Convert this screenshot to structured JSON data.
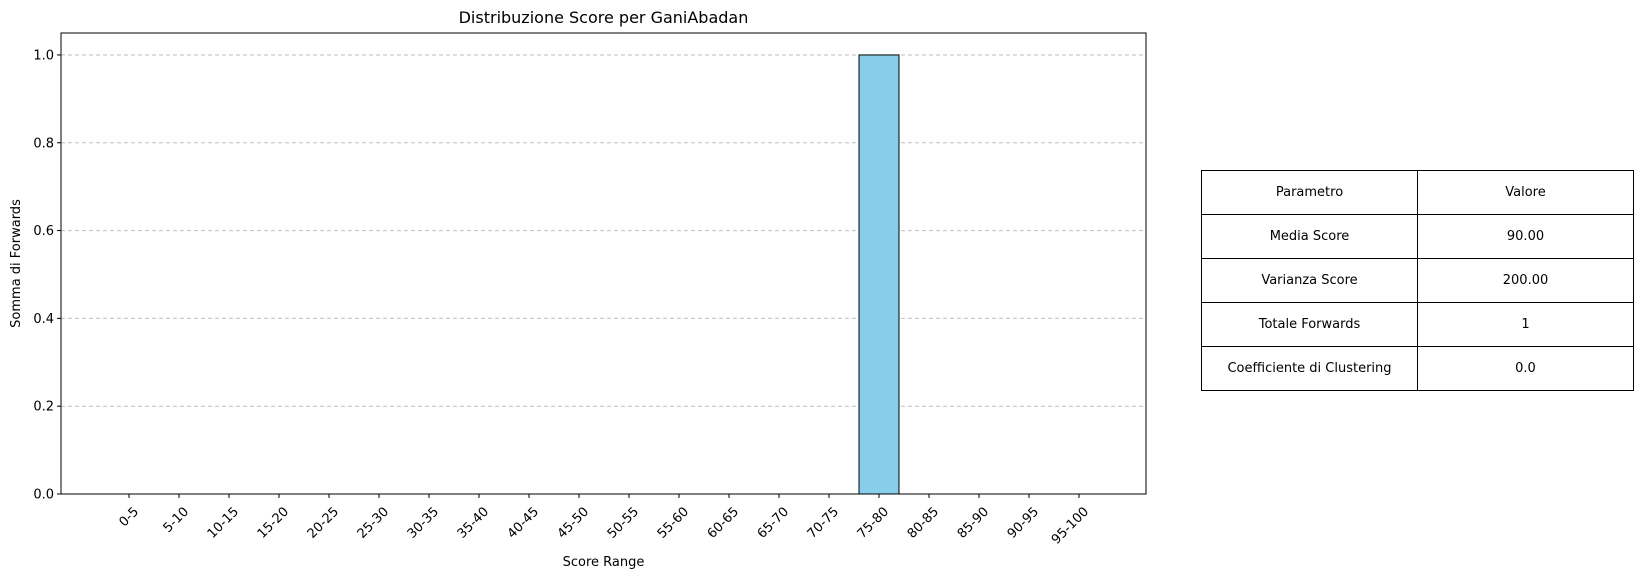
{
  "chart_data": {
    "type": "bar",
    "title": "Distribuzione Score per GaniAbadan",
    "xlabel": "Score Range",
    "ylabel": "Somma di Forwards",
    "categories": [
      "0-5",
      "5-10",
      "10-15",
      "15-20",
      "20-25",
      "25-30",
      "30-35",
      "35-40",
      "40-45",
      "45-50",
      "50-55",
      "55-60",
      "60-65",
      "65-70",
      "70-75",
      "75-80",
      "80-85",
      "85-90",
      "90-95",
      "95-100"
    ],
    "values": [
      0,
      0,
      0,
      0,
      0,
      0,
      0,
      0,
      0,
      0,
      0,
      0,
      0,
      0,
      0,
      1,
      0,
      0,
      0,
      0
    ],
    "ylim": [
      0,
      1.05
    ],
    "yticks": [
      "0.0",
      "0.2",
      "0.4",
      "0.6",
      "0.8",
      "1.0"
    ],
    "grid": "y-dashed",
    "bar_color": "#87ceeb",
    "edge_color": "#000000"
  },
  "table": {
    "header": [
      "Parametro",
      "Valore"
    ],
    "rows": [
      [
        "Media Score",
        "90.00"
      ],
      [
        "Varianza Score",
        "200.00"
      ],
      [
        "Totale Forwards",
        "1"
      ],
      [
        "Coefficiente di Clustering",
        "0.0"
      ]
    ]
  }
}
